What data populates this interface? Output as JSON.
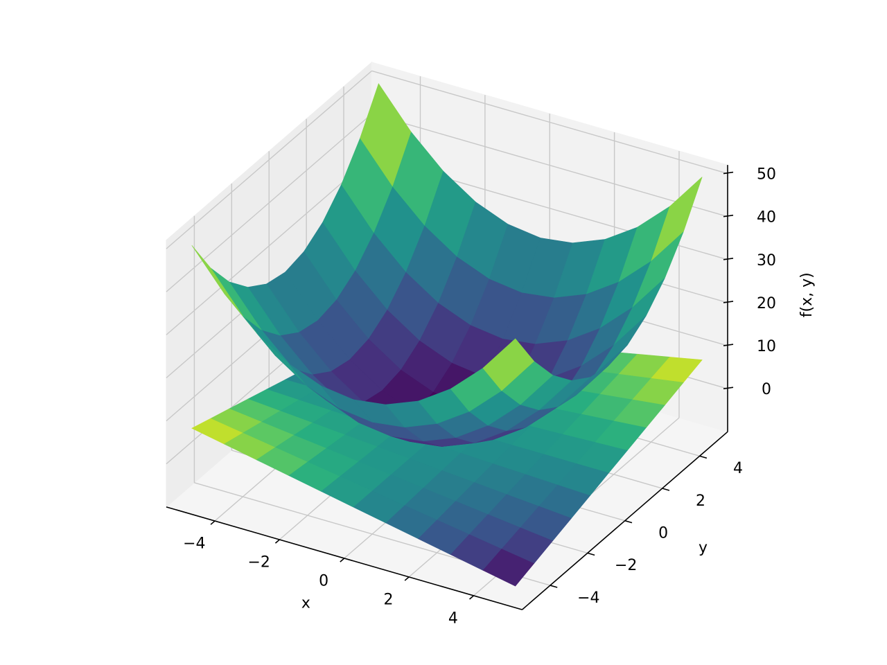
{
  "chart_data": {
    "type": "surface3d",
    "cmap": "viridis",
    "xlabel": "x",
    "ylabel": "y",
    "zlabel": "f(x, y)",
    "x": [
      -5,
      -4,
      -3,
      -2,
      -1,
      0,
      1,
      2,
      3,
      4,
      5
    ],
    "y": [
      -5,
      -4,
      -3,
      -2,
      -1,
      0,
      1,
      2,
      3,
      4,
      5
    ],
    "surfaces": [
      {
        "z": [
          [
            50,
            41,
            34,
            29,
            26,
            25,
            26,
            29,
            34,
            41,
            50
          ],
          [
            41,
            32,
            25,
            20,
            17,
            16,
            17,
            20,
            25,
            32,
            41
          ],
          [
            34,
            25,
            18,
            13,
            10,
            9,
            10,
            13,
            18,
            25,
            34
          ],
          [
            29,
            20,
            13,
            8,
            5,
            4,
            5,
            8,
            13,
            20,
            29
          ],
          [
            26,
            17,
            10,
            5,
            2,
            1,
            2,
            5,
            10,
            17,
            26
          ],
          [
            25,
            16,
            9,
            4,
            1,
            0,
            1,
            4,
            9,
            16,
            25
          ],
          [
            26,
            17,
            10,
            5,
            2,
            1,
            2,
            5,
            10,
            17,
            26
          ],
          [
            29,
            20,
            13,
            8,
            5,
            4,
            5,
            8,
            13,
            20,
            29
          ],
          [
            34,
            25,
            18,
            13,
            10,
            9,
            10,
            13,
            18,
            25,
            34
          ],
          [
            41,
            32,
            25,
            20,
            17,
            16,
            17,
            20,
            25,
            32,
            41
          ],
          [
            50,
            41,
            34,
            29,
            26,
            25,
            26,
            29,
            34,
            41,
            50
          ]
        ]
      },
      {
        "z": [
          [
            7.5,
            6,
            4.5,
            3,
            1.5,
            0,
            -1.5,
            -3,
            -4.5,
            -6,
            -7.5
          ],
          [
            6,
            4.8,
            3.6,
            2.4,
            1.2,
            0,
            -1.2,
            -2.4,
            -3.6,
            -4.8,
            -6
          ],
          [
            4.5,
            3.6,
            2.7,
            1.8,
            0.9,
            0,
            -0.9,
            -1.8,
            -2.7,
            -3.6,
            -4.5
          ],
          [
            3,
            2.4,
            1.8,
            1.2,
            0.6,
            0,
            -0.6,
            -1.2,
            -1.8,
            -2.4,
            -3
          ],
          [
            1.5,
            1.2,
            0.9,
            0.6,
            0.3,
            0,
            -0.3,
            -0.6,
            -0.9,
            -1.2,
            -1.5
          ],
          [
            0,
            0,
            0,
            0,
            0,
            0,
            0,
            0,
            0,
            0,
            0
          ],
          [
            -1.5,
            -1.2,
            -0.9,
            -0.6,
            -0.3,
            0,
            0.3,
            0.6,
            0.9,
            1.2,
            1.5
          ],
          [
            -3,
            -2.4,
            -1.8,
            -1.2,
            -0.6,
            0,
            0.6,
            1.2,
            1.8,
            2.4,
            3
          ],
          [
            -4.5,
            -3.6,
            -2.7,
            -1.8,
            -0.9,
            0,
            0.9,
            1.8,
            2.7,
            3.6,
            4.5
          ],
          [
            -6,
            -4.8,
            -3.6,
            -2.4,
            -1.2,
            0,
            1.2,
            2.4,
            3.6,
            4.8,
            6
          ],
          [
            -7.5,
            -6,
            -4.5,
            -3,
            -1.5,
            0,
            1.5,
            3,
            4.5,
            6,
            7.5
          ]
        ]
      }
    ],
    "xlim": [
      -5.5,
      5.5
    ],
    "ylim": [
      -5.5,
      5.5
    ],
    "zlim": [
      -10,
      52
    ],
    "xticks": [
      {
        "value": -4,
        "label": "−4"
      },
      {
        "value": -2,
        "label": "−2"
      },
      0,
      2,
      4
    ],
    "yticks": [
      {
        "value": -4,
        "label": "−4"
      },
      {
        "value": -2,
        "label": "−2"
      },
      0,
      2,
      4
    ],
    "zticks": [
      0,
      10,
      20,
      30,
      40,
      50
    ],
    "grid": true
  }
}
